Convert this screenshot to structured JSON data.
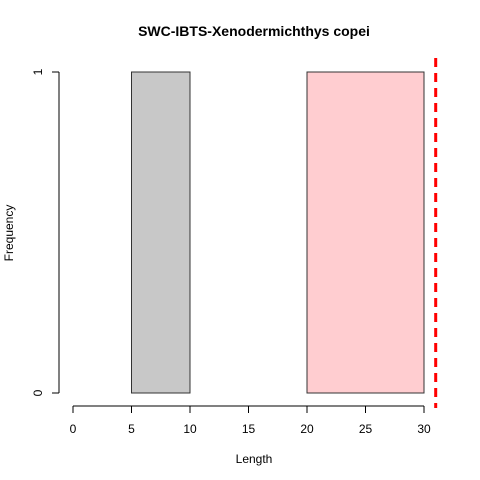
{
  "chart_data": {
    "type": "bar",
    "title": "SWC-IBTS-Xenodermichthys copei",
    "xlabel": "Length",
    "ylabel": "Frequency",
    "xlim": [
      0,
      30
    ],
    "ylim": [
      0,
      1
    ],
    "x_ticks": [
      "0",
      "5",
      "10",
      "15",
      "20",
      "25",
      "30"
    ],
    "y_ticks": [
      "0",
      "1"
    ],
    "bars": [
      {
        "x0": 5,
        "x1": 10,
        "value": 1,
        "color": "#c8c8c8"
      },
      {
        "x0": 20,
        "x1": 30,
        "value": 1,
        "color": "#ffcdd0"
      }
    ],
    "reference_line": {
      "x": 31,
      "color": "#ff0000",
      "style": "dashed"
    },
    "grid": false,
    "legend": "none"
  }
}
